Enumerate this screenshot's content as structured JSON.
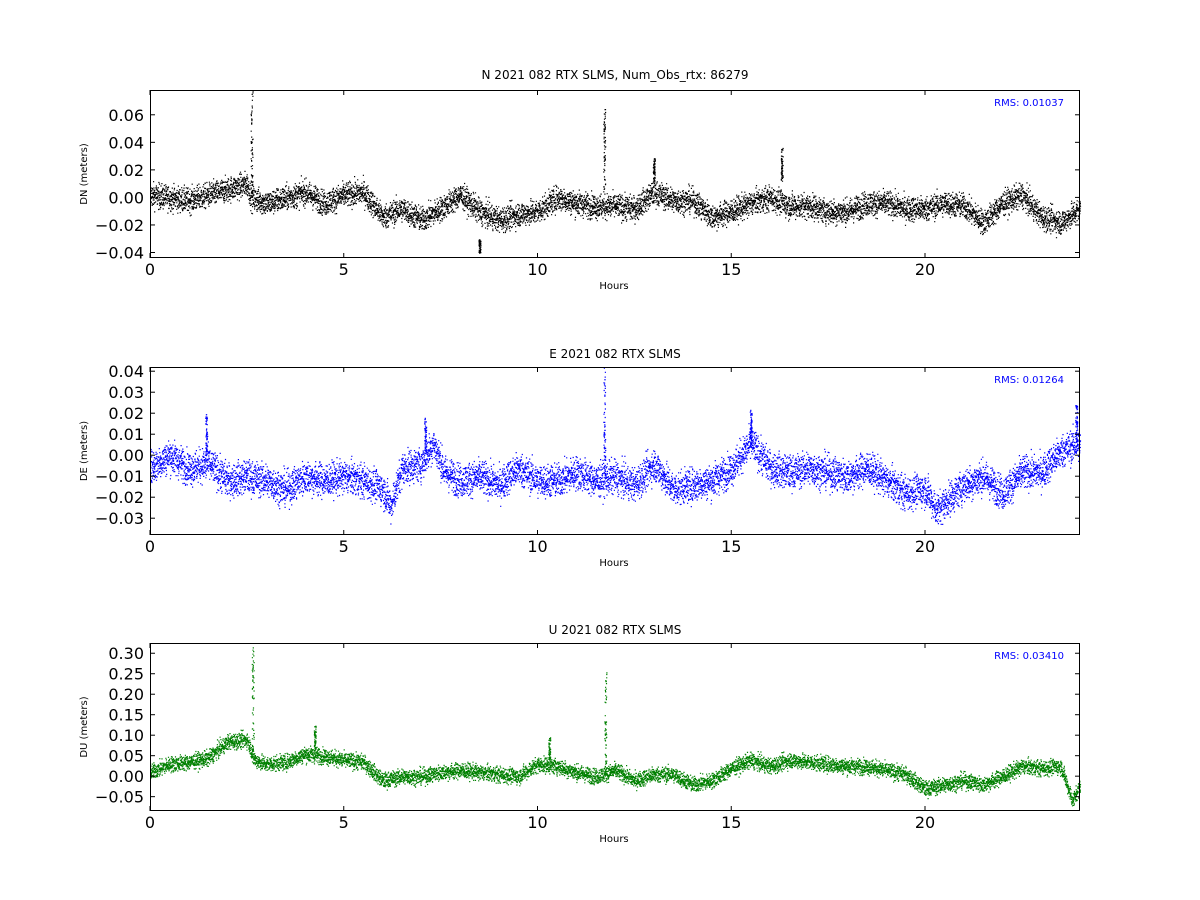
{
  "chart_data": [
    {
      "type": "scatter",
      "title": "N 2021 082 RTX  SLMS, Num_Obs_rtx: 86279",
      "xlabel": "Hours",
      "ylabel": "DN (meters)",
      "xlim": [
        0,
        24
      ],
      "ylim": [
        -0.044,
        0.078
      ],
      "xticks": [
        0,
        5,
        10,
        15,
        20
      ],
      "yticks": [
        -0.04,
        -0.02,
        0.0,
        0.02,
        0.04,
        0.06
      ],
      "ytick_labels": [
        "−0.04",
        "−0.02",
        "0.00",
        "0.02",
        "0.04",
        "0.06"
      ],
      "xtick_labels": [
        "0",
        "5",
        "10",
        "15",
        "20"
      ],
      "annotation": "RMS:  0.01037",
      "color": "#000000",
      "annotation_color": "#0000ff",
      "grid": false,
      "band": 0.0085,
      "trend": [
        [
          0,
          0.002
        ],
        [
          0.5,
          0.0
        ],
        [
          1,
          -0.002
        ],
        [
          1.5,
          0.002
        ],
        [
          2,
          0.006
        ],
        [
          2.5,
          0.01
        ],
        [
          2.6,
          0.0
        ],
        [
          3,
          -0.004
        ],
        [
          3.5,
          0.0
        ],
        [
          4,
          0.004
        ],
        [
          4.5,
          -0.004
        ],
        [
          5,
          0.002
        ],
        [
          5.5,
          0.004
        ],
        [
          6,
          -0.014
        ],
        [
          6.5,
          -0.008
        ],
        [
          7,
          -0.016
        ],
        [
          7.5,
          -0.008
        ],
        [
          8,
          0.002
        ],
        [
          8.5,
          -0.01
        ],
        [
          9,
          -0.016
        ],
        [
          9.5,
          -0.012
        ],
        [
          10,
          -0.01
        ],
        [
          10.5,
          0.0
        ],
        [
          11,
          -0.004
        ],
        [
          11.5,
          -0.006
        ],
        [
          12,
          -0.006
        ],
        [
          12.5,
          -0.008
        ],
        [
          13,
          0.004
        ],
        [
          13.5,
          -0.002
        ],
        [
          14,
          -0.002
        ],
        [
          14.5,
          -0.014
        ],
        [
          15,
          -0.01
        ],
        [
          15.5,
          -0.004
        ],
        [
          16,
          0.0
        ],
        [
          16.5,
          -0.006
        ],
        [
          17,
          -0.006
        ],
        [
          17.5,
          -0.01
        ],
        [
          18,
          -0.01
        ],
        [
          18.5,
          -0.004
        ],
        [
          19,
          -0.004
        ],
        [
          19.5,
          -0.008
        ],
        [
          20,
          -0.008
        ],
        [
          20.5,
          -0.004
        ],
        [
          21,
          -0.006
        ],
        [
          21.5,
          -0.018
        ],
        [
          22,
          -0.004
        ],
        [
          22.5,
          0.002
        ],
        [
          23,
          -0.014
        ],
        [
          23.5,
          -0.018
        ],
        [
          24,
          -0.008
        ]
      ],
      "spikes": [
        [
          2.62,
          0.0,
          0.078
        ],
        [
          11.72,
          0.005,
          0.066
        ],
        [
          16.3,
          0.012,
          0.036
        ],
        [
          13.0,
          0.012,
          0.029
        ],
        [
          8.5,
          -0.03,
          -0.04
        ]
      ]
    },
    {
      "type": "scatter",
      "title": "E 2021 082 RTX  SLMS",
      "xlabel": "Hours",
      "ylabel": "DE (meters)",
      "xlim": [
        0,
        24
      ],
      "ylim": [
        -0.038,
        0.042
      ],
      "xticks": [
        0,
        5,
        10,
        15,
        20
      ],
      "yticks": [
        -0.03,
        -0.02,
        -0.01,
        0.0,
        0.01,
        0.02,
        0.03,
        0.04
      ],
      "ytick_labels": [
        "−0.03",
        "−0.02",
        "−0.01",
        "0.00",
        "0.01",
        "0.02",
        "0.03",
        "0.04"
      ],
      "xtick_labels": [
        "0",
        "5",
        "10",
        "15",
        "20"
      ],
      "annotation": "RMS:  0.01264",
      "color": "#0000ff",
      "annotation_color": "#0000ff",
      "grid": false,
      "band": 0.0075,
      "trend": [
        [
          0,
          -0.006
        ],
        [
          0.5,
          0.0
        ],
        [
          1,
          -0.006
        ],
        [
          1.5,
          -0.004
        ],
        [
          2,
          -0.012
        ],
        [
          2.5,
          -0.01
        ],
        [
          3,
          -0.012
        ],
        [
          3.5,
          -0.016
        ],
        [
          4,
          -0.01
        ],
        [
          4.5,
          -0.012
        ],
        [
          5,
          -0.01
        ],
        [
          5.5,
          -0.012
        ],
        [
          6,
          -0.016
        ],
        [
          6.2,
          -0.024
        ],
        [
          6.5,
          -0.006
        ],
        [
          7,
          -0.004
        ],
        [
          7.3,
          0.006
        ],
        [
          7.6,
          -0.008
        ],
        [
          8,
          -0.012
        ],
        [
          8.5,
          -0.01
        ],
        [
          9,
          -0.014
        ],
        [
          9.5,
          -0.006
        ],
        [
          10,
          -0.012
        ],
        [
          10.5,
          -0.012
        ],
        [
          11,
          -0.008
        ],
        [
          11.5,
          -0.012
        ],
        [
          12,
          -0.01
        ],
        [
          12.5,
          -0.014
        ],
        [
          13,
          -0.004
        ],
        [
          13.5,
          -0.016
        ],
        [
          14,
          -0.014
        ],
        [
          14.5,
          -0.012
        ],
        [
          15,
          -0.006
        ],
        [
          15.5,
          0.006
        ],
        [
          16,
          -0.006
        ],
        [
          16.5,
          -0.008
        ],
        [
          17,
          -0.006
        ],
        [
          17.5,
          -0.008
        ],
        [
          18,
          -0.01
        ],
        [
          18.5,
          -0.006
        ],
        [
          19,
          -0.012
        ],
        [
          19.5,
          -0.018
        ],
        [
          20,
          -0.016
        ],
        [
          20.3,
          -0.026
        ],
        [
          21,
          -0.014
        ],
        [
          21.5,
          -0.01
        ],
        [
          22,
          -0.018
        ],
        [
          22.5,
          -0.008
        ],
        [
          23,
          -0.008
        ],
        [
          23.5,
          0.002
        ],
        [
          24,
          0.006
        ]
      ],
      "spikes": [
        [
          11.72,
          -0.01,
          0.042
        ],
        [
          1.45,
          0.0,
          0.02
        ],
        [
          7.1,
          0.0,
          0.018
        ],
        [
          15.5,
          0.008,
          0.022
        ],
        [
          23.9,
          0.004,
          0.024
        ]
      ]
    },
    {
      "type": "scatter",
      "title": "U 2021 082 RTX  SLMS",
      "xlabel": "Hours",
      "ylabel": "DU (meters)",
      "xlim": [
        0,
        24
      ],
      "ylim": [
        -0.085,
        0.325
      ],
      "xticks": [
        0,
        5,
        10,
        15,
        20
      ],
      "yticks": [
        -0.05,
        0.0,
        0.05,
        0.1,
        0.15,
        0.2,
        0.25,
        0.3
      ],
      "ytick_labels": [
        "−0.05",
        "0.00",
        "0.05",
        "0.10",
        "0.15",
        "0.20",
        "0.25",
        "0.30"
      ],
      "xtick_labels": [
        "0",
        "5",
        "10",
        "15",
        "20"
      ],
      "annotation": "RMS:  0.03410",
      "color": "#008000",
      "annotation_color": "#0000ff",
      "grid": false,
      "band": 0.018,
      "trend": [
        [
          0,
          0.01
        ],
        [
          0.5,
          0.03
        ],
        [
          1,
          0.035
        ],
        [
          1.5,
          0.045
        ],
        [
          2,
          0.085
        ],
        [
          2.5,
          0.09
        ],
        [
          2.7,
          0.04
        ],
        [
          3,
          0.03
        ],
        [
          3.5,
          0.035
        ],
        [
          4,
          0.055
        ],
        [
          4.5,
          0.05
        ],
        [
          5,
          0.04
        ],
        [
          5.5,
          0.035
        ],
        [
          6,
          -0.01
        ],
        [
          6.5,
          0.0
        ],
        [
          7,
          0.0
        ],
        [
          7.5,
          0.01
        ],
        [
          8,
          0.015
        ],
        [
          8.5,
          0.01
        ],
        [
          9,
          0.005
        ],
        [
          9.5,
          0.0
        ],
        [
          10,
          0.03
        ],
        [
          10.5,
          0.025
        ],
        [
          11,
          0.01
        ],
        [
          11.5,
          0.0
        ],
        [
          12,
          0.015
        ],
        [
          12.5,
          -0.01
        ],
        [
          13,
          0.005
        ],
        [
          13.5,
          0.005
        ],
        [
          14,
          -0.02
        ],
        [
          14.5,
          -0.01
        ],
        [
          15,
          0.02
        ],
        [
          15.5,
          0.04
        ],
        [
          16,
          0.025
        ],
        [
          16.5,
          0.04
        ],
        [
          17,
          0.035
        ],
        [
          17.5,
          0.03
        ],
        [
          18,
          0.025
        ],
        [
          18.5,
          0.025
        ],
        [
          19,
          0.015
        ],
        [
          19.5,
          0.005
        ],
        [
          20,
          -0.03
        ],
        [
          20.5,
          -0.02
        ],
        [
          21,
          -0.01
        ],
        [
          21.5,
          -0.02
        ],
        [
          22,
          0.0
        ],
        [
          22.5,
          0.025
        ],
        [
          23,
          0.02
        ],
        [
          23.5,
          0.025
        ],
        [
          23.8,
          -0.06
        ],
        [
          24,
          -0.02
        ]
      ],
      "spikes": [
        [
          2.65,
          0.03,
          0.325
        ],
        [
          11.75,
          0.0,
          0.255
        ],
        [
          4.25,
          0.06,
          0.125
        ],
        [
          10.3,
          0.04,
          0.095
        ]
      ]
    }
  ]
}
